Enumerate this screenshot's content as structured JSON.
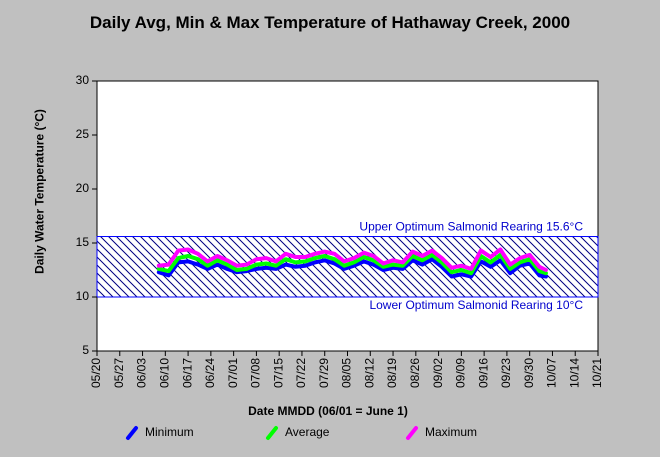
{
  "chart_data": {
    "type": "line",
    "title": "Daily Avg, Min & Max Temperature of Hathaway Creek, 2000",
    "xlabel": "Date MMDD (06/01 = June 1)",
    "ylabel": "Daily Water Temperature (°C)",
    "x": [
      "06/08",
      "06/11",
      "06/14",
      "06/17",
      "06/20",
      "06/23",
      "06/26",
      "06/29",
      "07/02",
      "07/05",
      "07/08",
      "07/11",
      "07/14",
      "07/17",
      "07/20",
      "07/23",
      "07/26",
      "07/29",
      "08/01",
      "08/04",
      "08/07",
      "08/10",
      "08/13",
      "08/16",
      "08/19",
      "08/22",
      "08/25",
      "08/28",
      "08/31",
      "09/03",
      "09/06",
      "09/09",
      "09/12",
      "09/15",
      "09/18",
      "09/21",
      "09/24",
      "09/27",
      "09/30",
      "10/03",
      "10/05"
    ],
    "series": [
      {
        "name": "Minimum",
        "color": "#0000ff",
        "values": [
          12.3,
          12.0,
          13.2,
          13.3,
          13.0,
          12.6,
          13.0,
          12.6,
          12.3,
          12.4,
          12.6,
          12.7,
          12.6,
          13.0,
          12.8,
          12.9,
          13.2,
          13.4,
          13.1,
          12.6,
          12.9,
          13.3,
          13.0,
          12.5,
          12.7,
          12.6,
          13.4,
          13.0,
          13.5,
          12.8,
          11.9,
          12.1,
          11.9,
          13.3,
          12.8,
          13.4,
          12.2,
          12.9,
          13.1,
          12.0,
          11.9
        ]
      },
      {
        "name": "Average",
        "color": "#00ff00",
        "values": [
          12.6,
          12.4,
          13.6,
          13.8,
          13.5,
          12.9,
          13.4,
          13.0,
          12.5,
          12.6,
          13.0,
          13.1,
          12.9,
          13.5,
          13.2,
          13.3,
          13.6,
          13.8,
          13.5,
          12.9,
          13.2,
          13.7,
          13.4,
          12.8,
          13.0,
          12.9,
          13.8,
          13.4,
          13.9,
          13.2,
          12.3,
          12.5,
          12.2,
          13.8,
          13.2,
          13.9,
          12.6,
          13.2,
          13.5,
          12.4,
          12.2
        ]
      },
      {
        "name": "Maximum",
        "color": "#ff00ff",
        "values": [
          12.9,
          13.0,
          14.3,
          14.4,
          14.0,
          13.3,
          13.8,
          13.4,
          12.9,
          13.0,
          13.5,
          13.6,
          13.3,
          14.0,
          13.7,
          13.7,
          14.0,
          14.2,
          14.0,
          13.3,
          13.6,
          14.1,
          13.8,
          13.1,
          13.4,
          13.2,
          14.2,
          13.8,
          14.3,
          13.6,
          12.7,
          12.9,
          12.6,
          14.3,
          13.7,
          14.4,
          13.0,
          13.6,
          13.9,
          12.8,
          12.5
        ]
      }
    ],
    "xlim": [
      "05/20",
      "10/21"
    ],
    "xticks": [
      "05/20",
      "05/27",
      "06/03",
      "06/10",
      "06/17",
      "06/24",
      "07/01",
      "07/08",
      "07/15",
      "07/22",
      "07/29",
      "08/05",
      "08/12",
      "08/19",
      "08/26",
      "09/02",
      "09/09",
      "09/16",
      "09/23",
      "09/30",
      "10/07",
      "10/14",
      "10/21"
    ],
    "ylim": [
      5,
      30
    ],
    "yticks": [
      5,
      10,
      15,
      20,
      25,
      30
    ],
    "band": {
      "lower": 10,
      "upper": 15.6,
      "upper_label": "Upper Optimum Salmonid Rearing 15.6°C",
      "lower_label": "Lower Optimum Salmonid Rearing 10°C",
      "color": "#000080"
    }
  }
}
